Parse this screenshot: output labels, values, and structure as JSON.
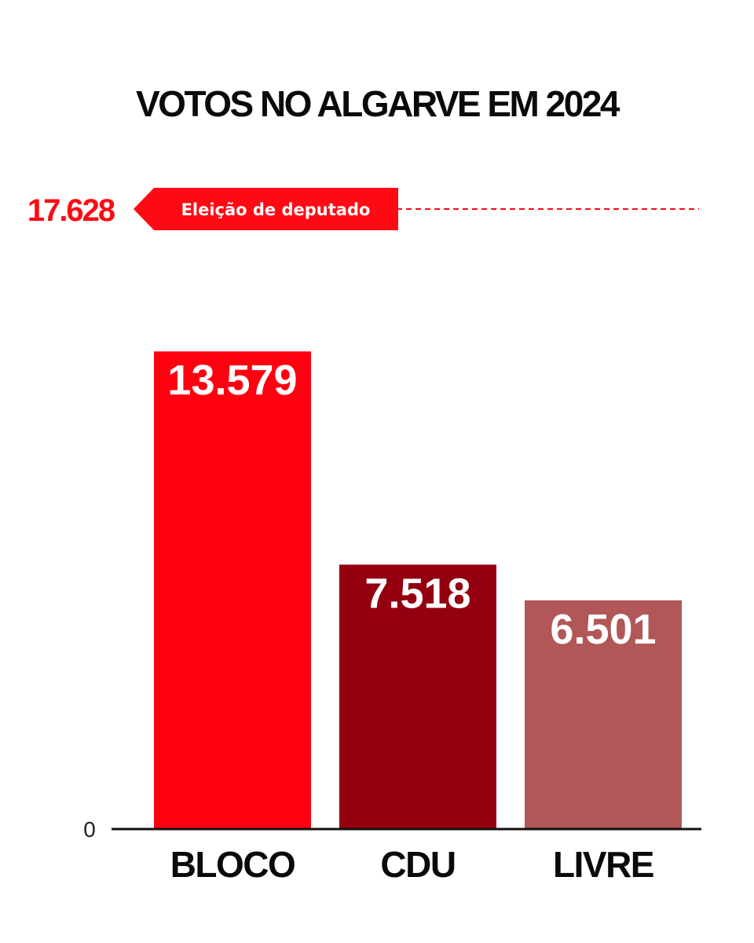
{
  "chart_data": {
    "type": "bar",
    "title": "VOTOS NO ALGARVE EM 2024",
    "categories": [
      "BLOCO",
      "CDU",
      "LIVRE"
    ],
    "values": [
      13579,
      7518,
      6501
    ],
    "value_labels": [
      "13.579",
      "7.518",
      "6.501"
    ],
    "colors": [
      "#ff0010",
      "#94000f",
      "#b25757"
    ],
    "ylim": [
      0,
      17628
    ],
    "y_zero_label": "0",
    "reference_line": {
      "value": 17628,
      "value_label": "17.628",
      "label": "Eleição de deputado",
      "color": "#ff0a14"
    },
    "xlabel": "",
    "ylabel": ""
  }
}
